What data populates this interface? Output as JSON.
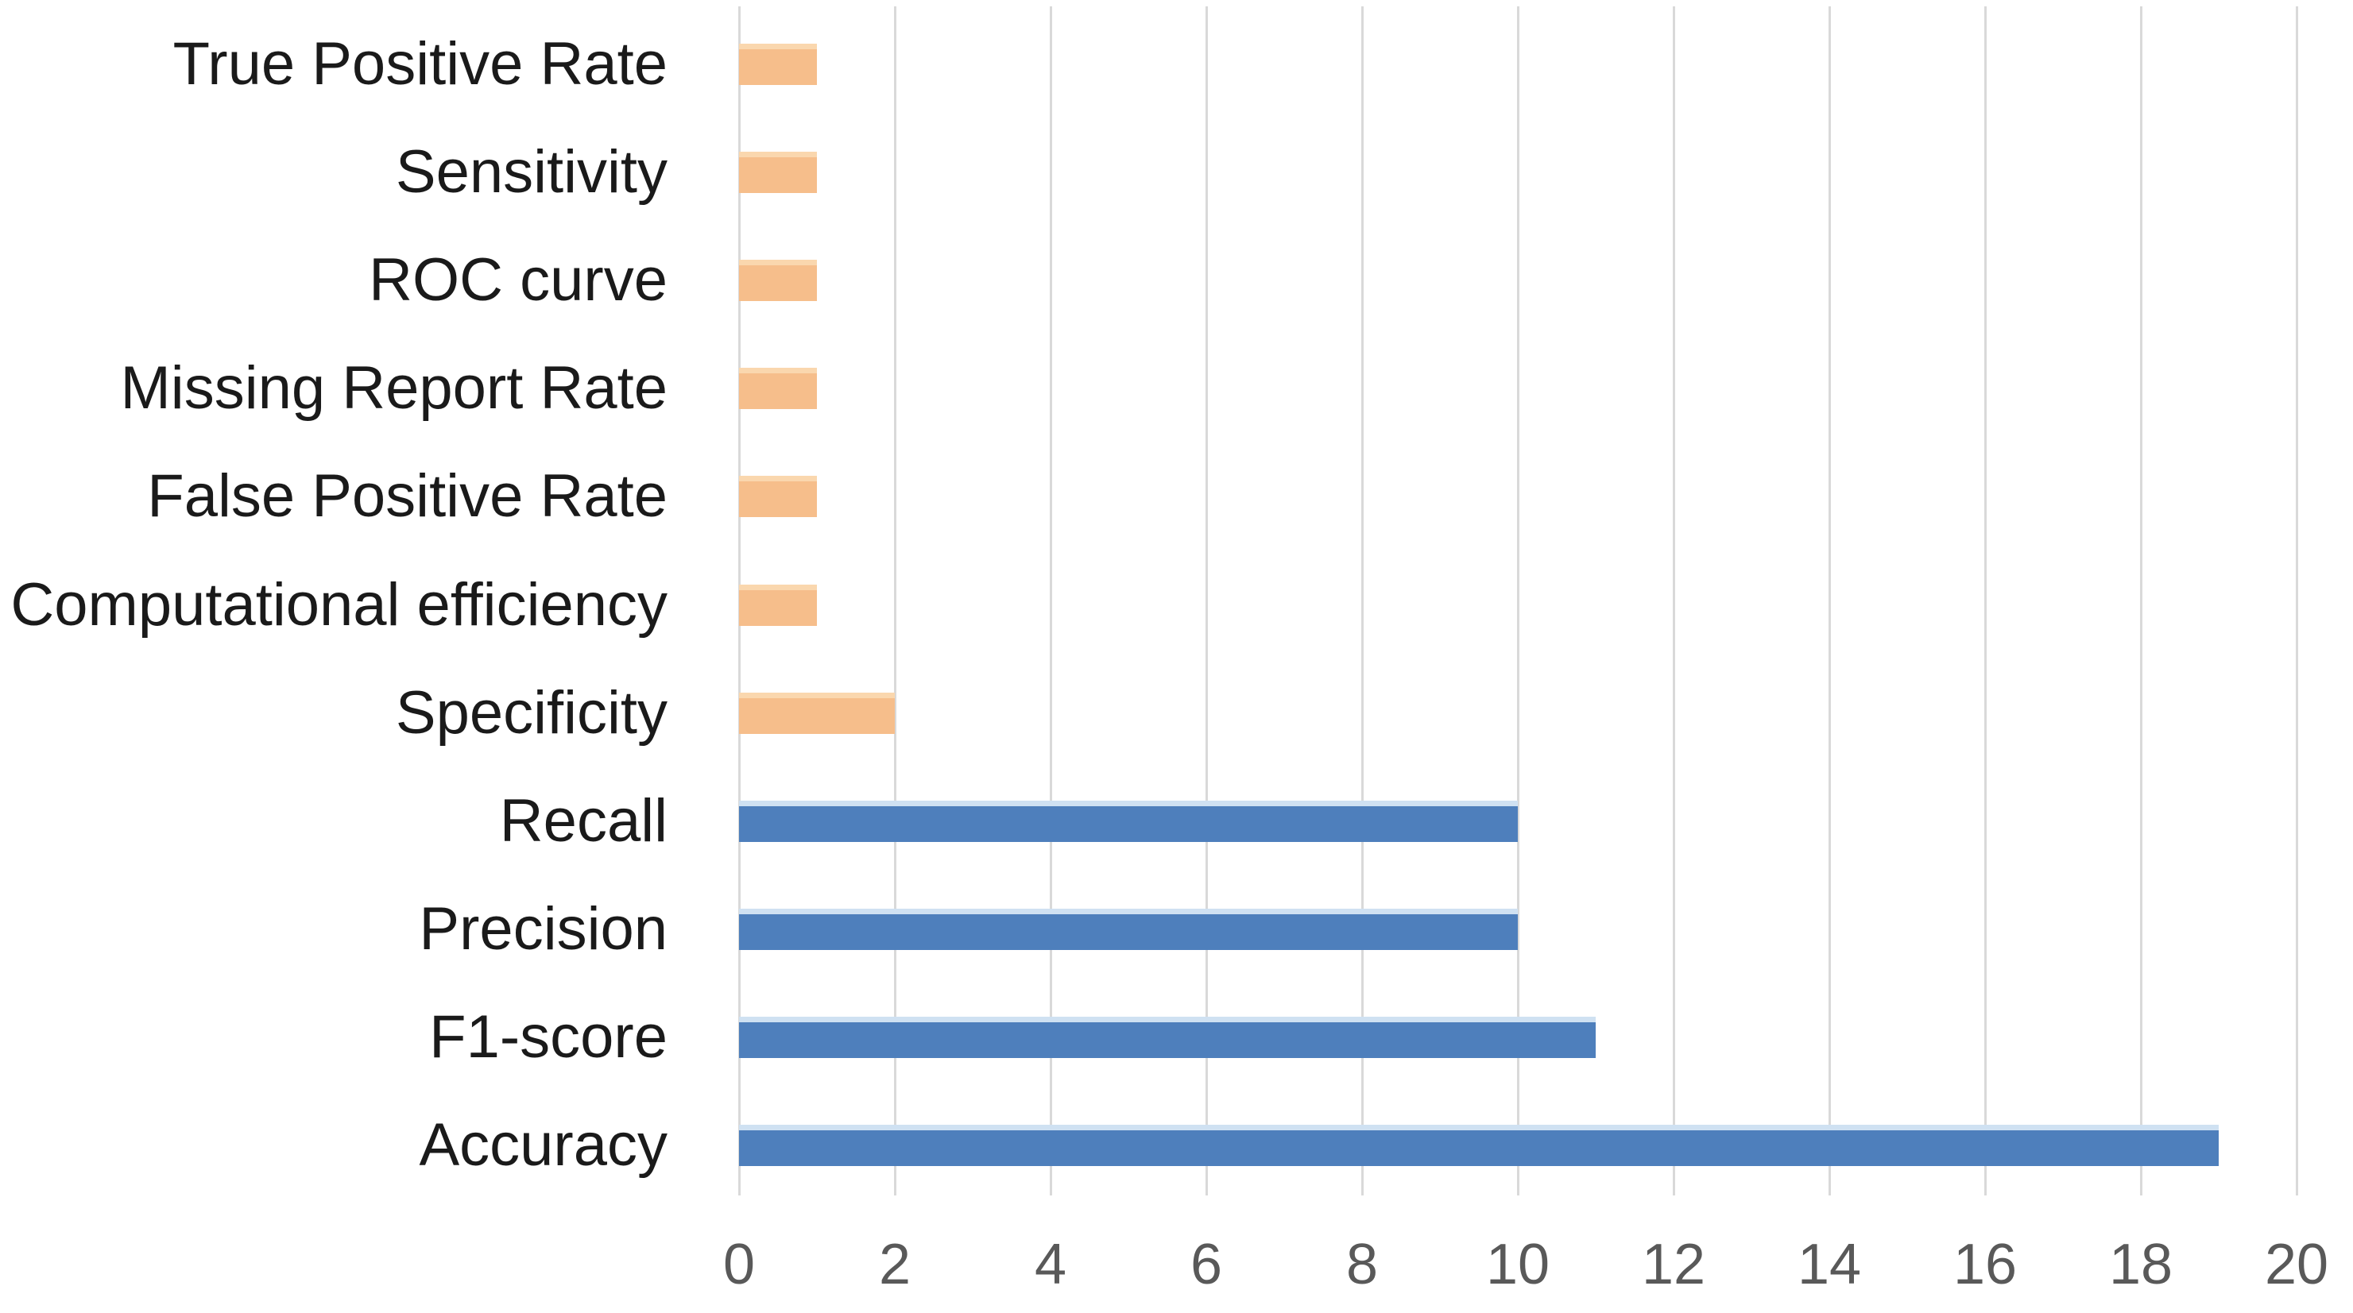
{
  "chart_data": {
    "type": "bar",
    "orientation": "horizontal",
    "title": "",
    "xlabel": "",
    "ylabel": "",
    "categories": [
      "True Positive Rate",
      "Sensitivity",
      "ROC curve",
      "Missing Report Rate",
      "False Positive Rate",
      "Computational efficiency",
      "Specificity",
      "Recall",
      "Precision",
      "F1-score",
      "Accuracy"
    ],
    "values": [
      1,
      1,
      1,
      1,
      1,
      1,
      2,
      10,
      10,
      11,
      19
    ],
    "series_color_keys": [
      "orange",
      "orange",
      "orange",
      "orange",
      "orange",
      "orange",
      "orange",
      "blue",
      "blue",
      "blue",
      "blue"
    ],
    "x_ticks": [
      0,
      2,
      4,
      6,
      8,
      10,
      12,
      14,
      16,
      18,
      20
    ],
    "xlim": [
      0,
      20
    ],
    "grid": "vertical-only",
    "legend": "none",
    "colors": {
      "orange": "#f6be8b",
      "orange_highlight": "#fad7ae",
      "blue": "#4e7fbc",
      "blue_highlight": "#cfe1f2",
      "gridline": "#d9d9d9",
      "tick_label": "#595959",
      "category_label": "#1a1a1a",
      "background": "#ffffff"
    }
  }
}
